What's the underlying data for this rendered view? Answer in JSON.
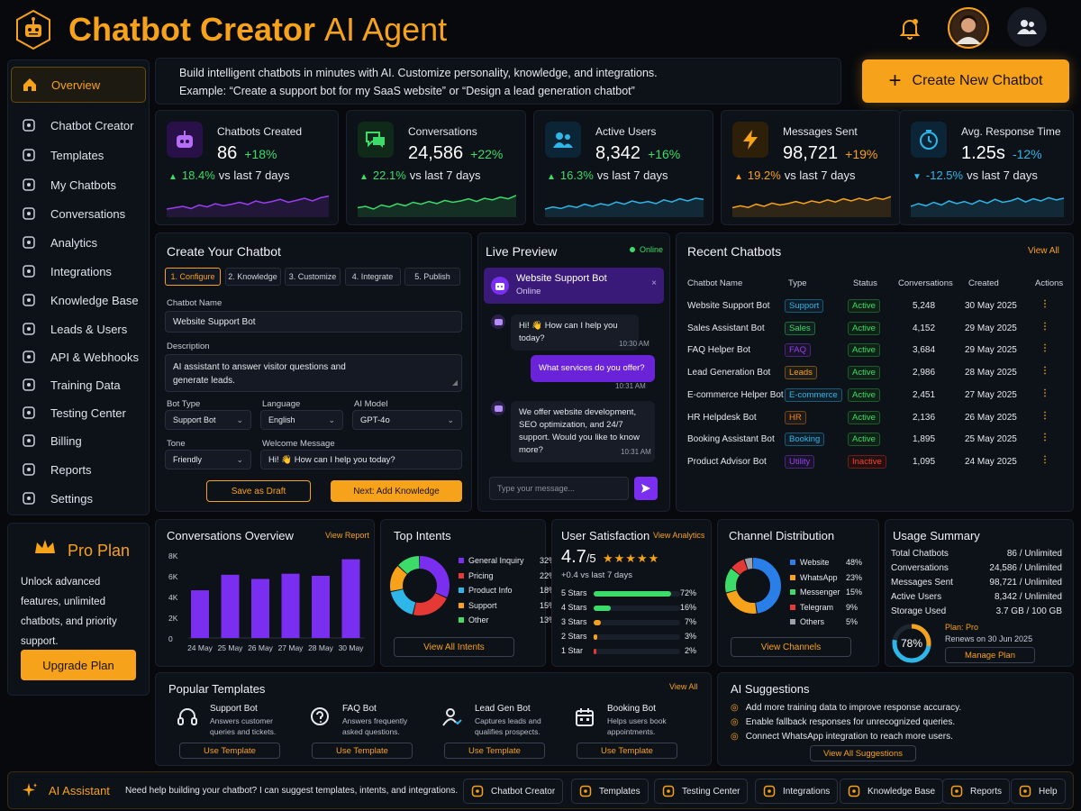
{
  "header": {
    "title_bold": "Chatbot Creator",
    "title_light": "AI Agent",
    "icons": [
      "robot-logo",
      "bell-icon",
      "user-avatar",
      "team-icon"
    ]
  },
  "sidebar": {
    "items": [
      {
        "label": "Overview",
        "icon": "home-icon",
        "active": true
      },
      {
        "label": "Chatbot Creator",
        "icon": "bot-icon"
      },
      {
        "label": "Templates",
        "icon": "template-icon"
      },
      {
        "label": "My Chatbots",
        "icon": "chatbots-icon"
      },
      {
        "label": "Conversations",
        "icon": "chat-icon"
      },
      {
        "label": "Analytics",
        "icon": "analytics-icon"
      },
      {
        "label": "Integrations",
        "icon": "integrations-icon"
      },
      {
        "label": "Knowledge Base",
        "icon": "knowledge-icon"
      },
      {
        "label": "Leads & Users",
        "icon": "leads-icon"
      },
      {
        "label": "API & Webhooks",
        "icon": "api-icon"
      },
      {
        "label": "Training Data",
        "icon": "training-icon"
      },
      {
        "label": "Testing Center",
        "icon": "testing-icon"
      },
      {
        "label": "Billing",
        "icon": "billing-icon"
      },
      {
        "label": "Reports",
        "icon": "reports-icon"
      },
      {
        "label": "Settings",
        "icon": "settings-icon"
      }
    ],
    "pro": {
      "title": "Pro Plan",
      "desc": "Unlock advanced features, unlimited chatbots, and priority support.",
      "button": "Upgrade Plan"
    }
  },
  "banner": {
    "line1": "Build intelligent chatbots in minutes with AI. Customize personality, knowledge, and integrations.",
    "line2": "Example: “Create a support bot for my SaaS website” or “Design a lead generation chatbot”"
  },
  "create_button": "Create New Chatbot",
  "stats": [
    {
      "label": "Chatbots Created",
      "value": "86",
      "change": "+18%",
      "sub_pct": "18.4%",
      "sub_text": "vs last 7 days",
      "color": "#9b3df0",
      "trend": [
        0.3,
        0.35,
        0.4,
        0.32,
        0.45,
        0.38,
        0.5,
        0.42,
        0.48,
        0.55,
        0.47,
        0.6,
        0.52,
        0.58,
        0.66,
        0.55,
        0.62,
        0.7,
        0.6,
        0.72,
        0.78
      ]
    },
    {
      "label": "Conversations",
      "value": "24,586",
      "change": "+22%",
      "sub_pct": "22.1%",
      "sub_text": "vs last 7 days",
      "color": "#3ddc6a",
      "trend": [
        0.35,
        0.4,
        0.3,
        0.45,
        0.38,
        0.5,
        0.42,
        0.55,
        0.48,
        0.58,
        0.5,
        0.62,
        0.55,
        0.6,
        0.68,
        0.58,
        0.7,
        0.64,
        0.74,
        0.68,
        0.8
      ]
    },
    {
      "label": "Active Users",
      "value": "8,342",
      "change": "+16%",
      "sub_pct": "16.3%",
      "sub_text": "vs last 7 days",
      "color": "#2fb6e8",
      "trend": [
        0.3,
        0.38,
        0.32,
        0.42,
        0.36,
        0.48,
        0.4,
        0.5,
        0.44,
        0.56,
        0.48,
        0.6,
        0.52,
        0.58,
        0.5,
        0.64,
        0.56,
        0.68,
        0.6,
        0.7,
        0.66
      ]
    },
    {
      "label": "Messages Sent",
      "value": "98,721",
      "change": "+19%",
      "sub_pct": "19.2%",
      "sub_text": "vs last 7 days",
      "color": "#f7a21b",
      "trend": [
        0.35,
        0.42,
        0.36,
        0.48,
        0.4,
        0.52,
        0.45,
        0.5,
        0.58,
        0.5,
        0.6,
        0.54,
        0.64,
        0.56,
        0.68,
        0.6,
        0.7,
        0.62,
        0.72,
        0.66,
        0.76
      ]
    },
    {
      "label": "Avg. Response Time",
      "value": "1.25s",
      "change": "-12%",
      "sub_pct": "-12.5%",
      "sub_text": "vs last 7 days",
      "color": "#2fb6e8",
      "trend": [
        0.4,
        0.5,
        0.42,
        0.55,
        0.45,
        0.6,
        0.5,
        0.58,
        0.48,
        0.62,
        0.52,
        0.66,
        0.55,
        0.6,
        0.7,
        0.56,
        0.68,
        0.6,
        0.72,
        0.64,
        0.7
      ]
    }
  ],
  "create": {
    "title": "Create Your Chatbot",
    "steps": [
      "1. Configure",
      "2. Knowledge",
      "3. Customize",
      "4. Integrate",
      "5. Publish"
    ],
    "name_label": "Chatbot Name",
    "name_value": "Website Support Bot",
    "desc_label": "Description",
    "desc_value": "AI assistant to answer visitor questions and generate leads.",
    "bot_type_label": "Bot Type",
    "bot_type": "Support Bot",
    "language_label": "Language",
    "language": "English",
    "model_label": "AI Model",
    "model": "GPT-4o",
    "tone_label": "Tone",
    "tone": "Friendly",
    "welcome_label": "Welcome Message",
    "welcome": "Hi! 👋 How can I help you today?",
    "draft_btn": "Save as Draft",
    "next_btn": "Next: Add Knowledge"
  },
  "preview": {
    "title": "Live Preview",
    "status": "Online",
    "bot_name": "Website Support Bot",
    "bot_status": "Online",
    "msg1": "Hi! 👋 How can I help you today?",
    "time1": "10:30 AM",
    "msg2": "What services do you offer?",
    "time2": "10:31 AM",
    "msg3": "We offer website development, SEO optimization, and 24/7 support. Would you like to know more?",
    "time3": "10:31 AM",
    "input_placeholder": "Type your message..."
  },
  "recent": {
    "title": "Recent Chatbots",
    "view_all": "View All",
    "headers": [
      "Chatbot Name",
      "Type",
      "Status",
      "Conversations",
      "Created",
      "Actions"
    ],
    "rows": [
      {
        "name": "Website Support Bot",
        "type": "Support",
        "tcolor": "#2fb6e8",
        "status": "Active",
        "conv": "5,248",
        "created": "30 May 2025"
      },
      {
        "name": "Sales Assistant Bot",
        "type": "Sales",
        "tcolor": "#3ddc6a",
        "status": "Active",
        "conv": "4,152",
        "created": "29 May 2025"
      },
      {
        "name": "FAQ Helper Bot",
        "type": "FAQ",
        "tcolor": "#9b3df0",
        "status": "Active",
        "conv": "3,684",
        "created": "29 May 2025"
      },
      {
        "name": "Lead Generation Bot",
        "type": "Leads",
        "tcolor": "#f7a21b",
        "status": "Active",
        "conv": "2,986",
        "created": "28 May 2025"
      },
      {
        "name": "E-commerce Helper Bot",
        "type": "E-commerce",
        "tcolor": "#2fb6e8",
        "status": "Active",
        "conv": "2,451",
        "created": "27 May 2025"
      },
      {
        "name": "HR Helpdesk Bot",
        "type": "HR",
        "tcolor": "#f7861b",
        "status": "Active",
        "conv": "2,136",
        "created": "26 May 2025"
      },
      {
        "name": "Booking Assistant Bot",
        "type": "Booking",
        "tcolor": "#2fb6e8",
        "status": "Active",
        "conv": "1,895",
        "created": "25 May 2025"
      },
      {
        "name": "Product Advisor Bot",
        "type": "Utility",
        "tcolor": "#9b3df0",
        "status": "Inactive",
        "conv": "1,095",
        "created": "24 May 2025"
      }
    ]
  },
  "conv_overview": {
    "title": "Conversations Overview",
    "link": "View Report",
    "yticks": [
      "8K",
      "6K",
      "4K",
      "2K",
      "0"
    ]
  },
  "chart_data": {
    "type": "bar",
    "title": "Conversations Overview",
    "categories": [
      "24 May",
      "25 May",
      "26 May",
      "27 May",
      "28 May",
      "30 May"
    ],
    "values": [
      4.6,
      6.1,
      5.7,
      6.2,
      6.0,
      7.6
    ],
    "ylim": [
      0,
      8
    ],
    "ytick_labels": [
      "0",
      "2K",
      "4K",
      "6K",
      "8K"
    ],
    "color": "#7a2ff0"
  },
  "intents": {
    "title": "Top Intents",
    "button": "View All Intents",
    "items": [
      {
        "label": "General Inquiry",
        "pct": "32%",
        "value": 32,
        "color": "#7a2ff0"
      },
      {
        "label": "Pricing",
        "pct": "22%",
        "value": 22,
        "color": "#e53935"
      },
      {
        "label": "Product Info",
        "pct": "18%",
        "value": 18,
        "color": "#2fb6e8"
      },
      {
        "label": "Support",
        "pct": "15%",
        "value": 15,
        "color": "#f7a21b"
      },
      {
        "label": "Other",
        "pct": "13%",
        "value": 13,
        "color": "#3ddc6a"
      }
    ]
  },
  "satisfaction": {
    "title": "User Satisfaction",
    "link": "View Analytics",
    "score": "4.7",
    "out_of": "/5",
    "stars": "★★★★★",
    "change": "+0.4 vs last 7 days",
    "rows": [
      {
        "label": "5 Stars",
        "pct": "72%",
        "value": 0.72,
        "color": "#3ddc6a"
      },
      {
        "label": "4 Stars",
        "pct": "16%",
        "value": 0.16,
        "color": "#3ddc6a"
      },
      {
        "label": "3 Stars",
        "pct": "7%",
        "value": 0.07,
        "color": "#f7a21b"
      },
      {
        "label": "2 Stars",
        "pct": "3%",
        "value": 0.03,
        "color": "#f7a21b"
      },
      {
        "label": "1 Star",
        "pct": "2%",
        "value": 0.02,
        "color": "#e53935"
      }
    ]
  },
  "channels": {
    "title": "Channel Distribution",
    "button": "View Channels",
    "items": [
      {
        "label": "Website",
        "pct": "48%",
        "value": 48,
        "color": "#2a7ee8"
      },
      {
        "label": "WhatsApp",
        "pct": "23%",
        "value": 23,
        "color": "#f7a21b"
      },
      {
        "label": "Messenger",
        "pct": "15%",
        "value": 15,
        "color": "#3ddc6a"
      },
      {
        "label": "Telegram",
        "pct": "9%",
        "value": 9,
        "color": "#e53935"
      },
      {
        "label": "Others",
        "pct": "5%",
        "value": 5,
        "color": "#9aa1ad"
      }
    ]
  },
  "usage": {
    "title": "Usage Summary",
    "rows": [
      {
        "label": "Total Chatbots",
        "value": "86 / Unlimited"
      },
      {
        "label": "Conversations",
        "value": "24,586 / Unlimited"
      },
      {
        "label": "Messages Sent",
        "value": "98,721 / Unlimited"
      },
      {
        "label": "Active Users",
        "value": "8,342 / Unlimited"
      },
      {
        "label": "Storage Used",
        "value": "3.7 GB / 100 GB"
      }
    ],
    "gauge_pct": "78%",
    "gauge_value": 0.78,
    "plan": "Plan: Pro",
    "renews": "Renews on 30 Jun 2025",
    "button": "Manage Plan"
  },
  "templates": {
    "title": "Popular Templates",
    "view_all": "View All",
    "items": [
      {
        "title": "Support Bot",
        "desc": "Answers customer queries and tickets.",
        "icon": "headset-icon",
        "button": "Use Template"
      },
      {
        "title": "FAQ Bot",
        "desc": "Answers frequently asked questions.",
        "icon": "question-icon",
        "button": "Use Template"
      },
      {
        "title": "Lead Gen Bot",
        "desc": "Captures leads and qualifies prospects.",
        "icon": "lead-user-icon",
        "button": "Use Template"
      },
      {
        "title": "Booking Bot",
        "desc": "Helps users book appointments.",
        "icon": "calendar-icon",
        "button": "Use Template"
      }
    ]
  },
  "suggestions": {
    "title": "AI Suggestions",
    "items": [
      "Add more training data to improve response accuracy.",
      "Enable fallback responses for unrecognized queries.",
      "Connect WhatsApp integration to reach more users."
    ],
    "button": "View All Suggestions"
  },
  "footer": {
    "assistant_label": "AI Assistant",
    "assistant_text": "Need help building your chatbot? I can suggest templates, intents, and integrations.",
    "buttons": [
      "Chatbot Creator",
      "Templates",
      "Testing Center",
      "Integrations",
      "Knowledge Base",
      "Reports",
      "Help"
    ]
  },
  "colors": {
    "accent": "#f7a21b",
    "purple": "#7a2ff0",
    "green": "#3ddc6a",
    "cyan": "#2fb6e8",
    "red": "#e53935"
  }
}
